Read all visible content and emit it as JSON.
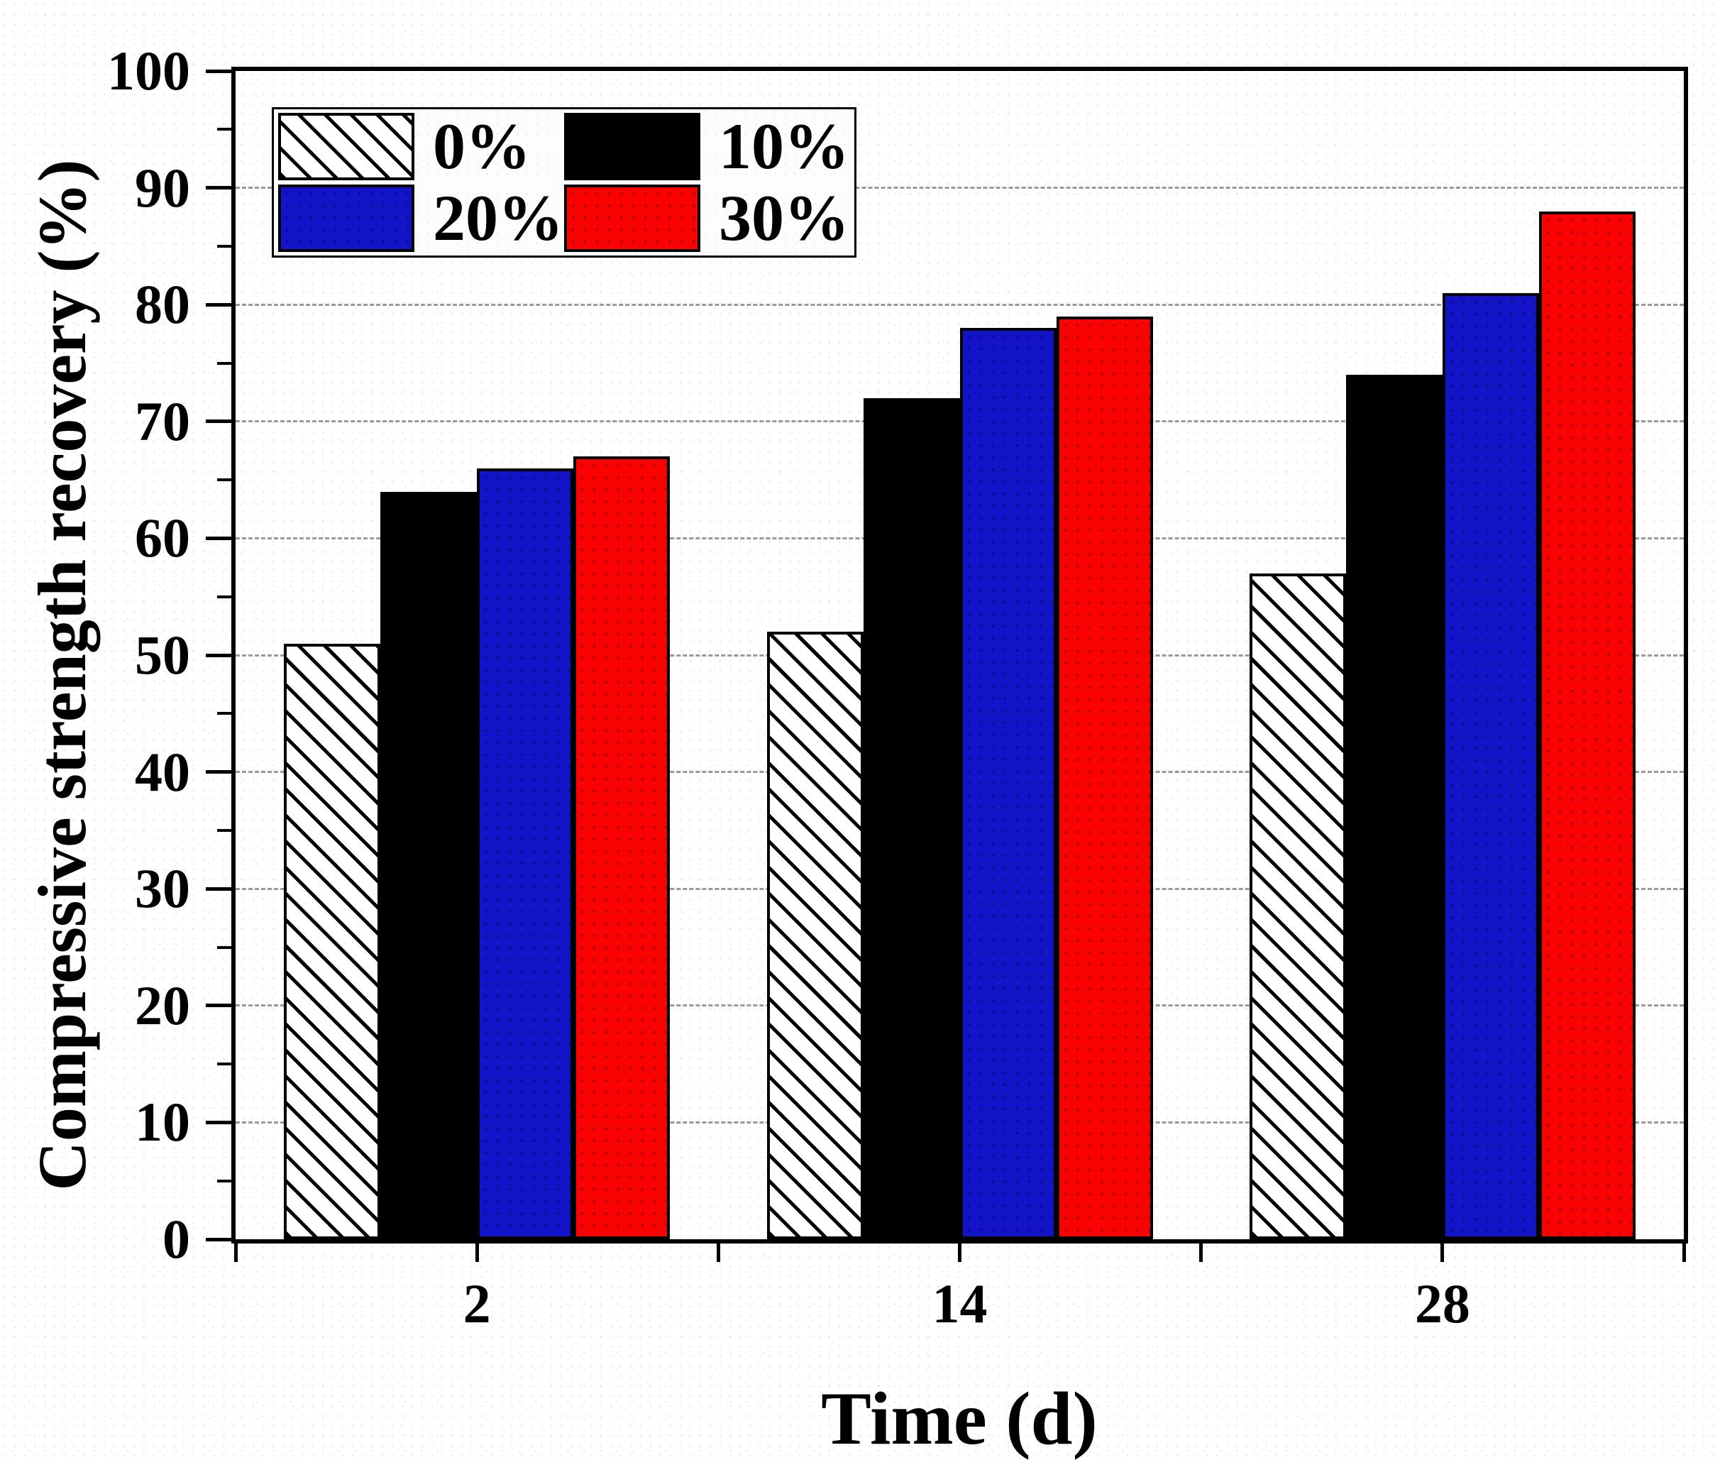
{
  "chart_data": {
    "type": "bar",
    "title": "",
    "xlabel": "Time (d)",
    "ylabel": "Compressive strength recovery (%)",
    "categories": [
      "2",
      "14",
      "28"
    ],
    "series": [
      {
        "name": "0%",
        "fill": "hatched",
        "color": "#ffffff",
        "hatch_color": "#000000",
        "values": [
          51,
          52,
          57
        ]
      },
      {
        "name": "10%",
        "fill": "solid",
        "color": "#000000",
        "values": [
          64,
          72,
          74
        ]
      },
      {
        "name": "20%",
        "fill": "solid",
        "color": "#1313c8",
        "values": [
          66,
          78,
          81
        ]
      },
      {
        "name": "30%",
        "fill": "solid",
        "color": "#fa0202",
        "values": [
          67,
          79,
          88
        ]
      }
    ],
    "ylim": [
      0,
      100
    ],
    "y_major_step": 10,
    "y_minor_step": 5,
    "grid": "horizontal dashed lines at major ticks 10-90",
    "gridline_color": "#9a9a9a",
    "bar_outline_color": "#000000",
    "legend_position": "top-left inside plot",
    "legend_items": [
      "0%",
      "10%",
      "20%",
      "30%"
    ]
  },
  "axes": {
    "y_tick_labels": [
      "0",
      "10",
      "20",
      "30",
      "40",
      "50",
      "60",
      "70",
      "80",
      "90",
      "100"
    ],
    "x_tick_labels": [
      "2",
      "14",
      "28"
    ]
  }
}
